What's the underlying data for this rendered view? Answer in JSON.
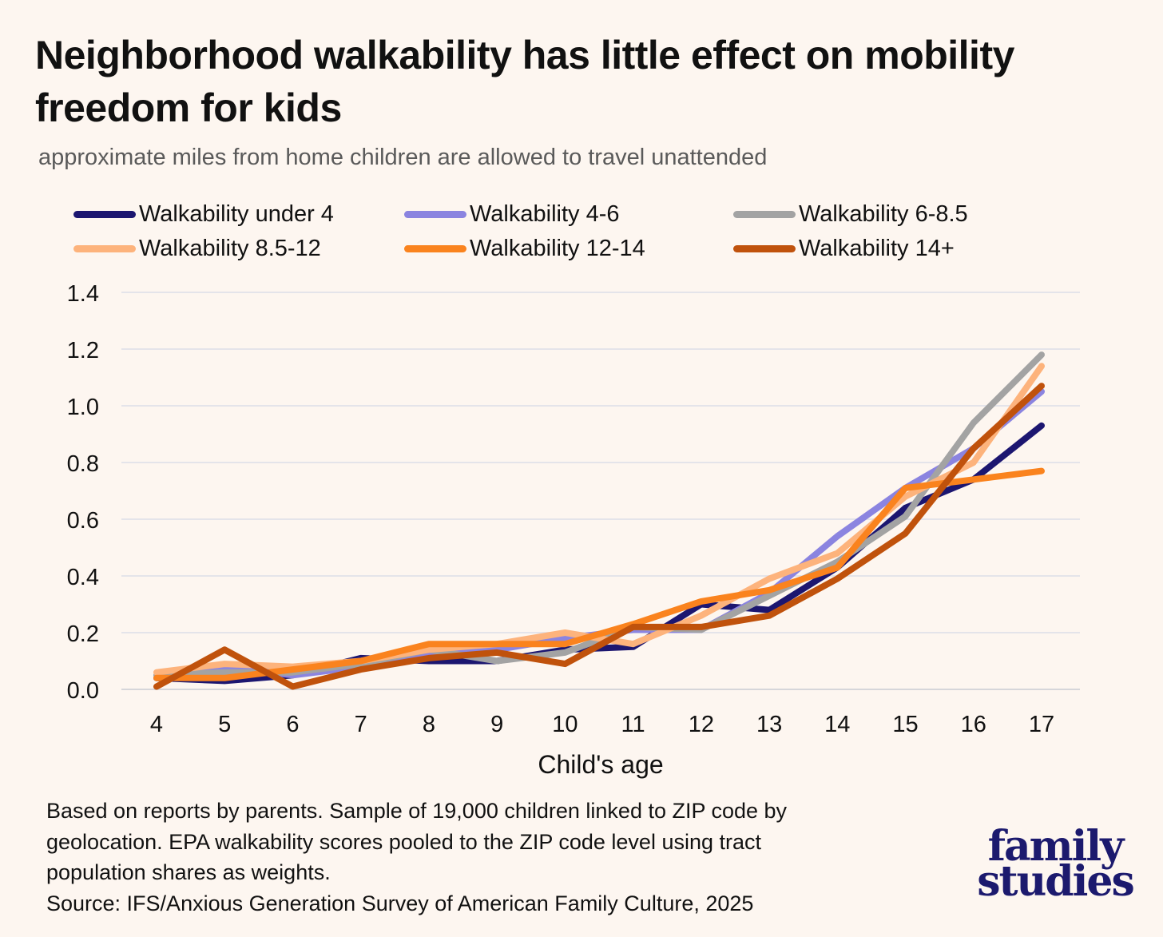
{
  "chart_data": {
    "type": "line",
    "title": "Neighborhood walkability has little effect on mobility freedom for kids",
    "subtitle": "approximate miles from home children are allowed to travel unattended",
    "xlabel": "Child's age",
    "ylabel": "",
    "x": [
      4,
      5,
      6,
      7,
      8,
      9,
      10,
      11,
      12,
      13,
      14,
      15,
      16,
      17
    ],
    "ylim": [
      0,
      1.4
    ],
    "yticks": [
      "0.0",
      "0.2",
      "0.4",
      "0.6",
      "0.8",
      "1.0",
      "1.2",
      "1.4"
    ],
    "grid": true,
    "legend_position": "top",
    "series": [
      {
        "name": "Walkability under 4",
        "color": "#1c1670",
        "values": [
          0.04,
          0.03,
          0.05,
          0.11,
          0.1,
          0.1,
          0.14,
          0.15,
          0.3,
          0.28,
          0.43,
          0.64,
          0.74,
          0.93
        ]
      },
      {
        "name": "Walkability 4-6",
        "color": "#8b84e0",
        "values": [
          0.04,
          0.08,
          0.05,
          0.08,
          0.13,
          0.14,
          0.18,
          0.21,
          0.21,
          0.34,
          0.54,
          0.71,
          0.85,
          1.05
        ]
      },
      {
        "name": "Walkability 6-8.5",
        "color": "#a3a3a3",
        "values": [
          0.05,
          0.06,
          0.06,
          0.09,
          0.14,
          0.1,
          0.13,
          0.22,
          0.21,
          0.33,
          0.45,
          0.61,
          0.94,
          1.18
        ]
      },
      {
        "name": "Walkability 8.5-12",
        "color": "#fdb37c",
        "values": [
          0.06,
          0.09,
          0.08,
          0.1,
          0.14,
          0.16,
          0.2,
          0.16,
          0.26,
          0.39,
          0.48,
          0.68,
          0.8,
          1.14
        ]
      },
      {
        "name": "Walkability 12-14",
        "color": "#fa831e",
        "values": [
          0.04,
          0.04,
          0.07,
          0.1,
          0.16,
          0.16,
          0.16,
          0.23,
          0.31,
          0.35,
          0.43,
          0.71,
          0.74,
          0.77
        ]
      },
      {
        "name": "Walkability 14+",
        "color": "#c0520c",
        "values": [
          0.01,
          0.14,
          0.01,
          0.07,
          0.11,
          0.13,
          0.09,
          0.22,
          0.22,
          0.26,
          0.39,
          0.55,
          0.85,
          1.07
        ]
      }
    ]
  },
  "footnote": {
    "line1": "Based on reports by parents. Sample of 19,000 children linked to ZIP code by",
    "line2": "geolocation. EPA walkability scores pooled to the ZIP code level using tract",
    "line3": "population shares as weights.",
    "line4": "Source: IFS/Anxious Generation Survey of American Family Culture, 2025"
  },
  "brand": {
    "line1": "family",
    "line2": "studies"
  }
}
